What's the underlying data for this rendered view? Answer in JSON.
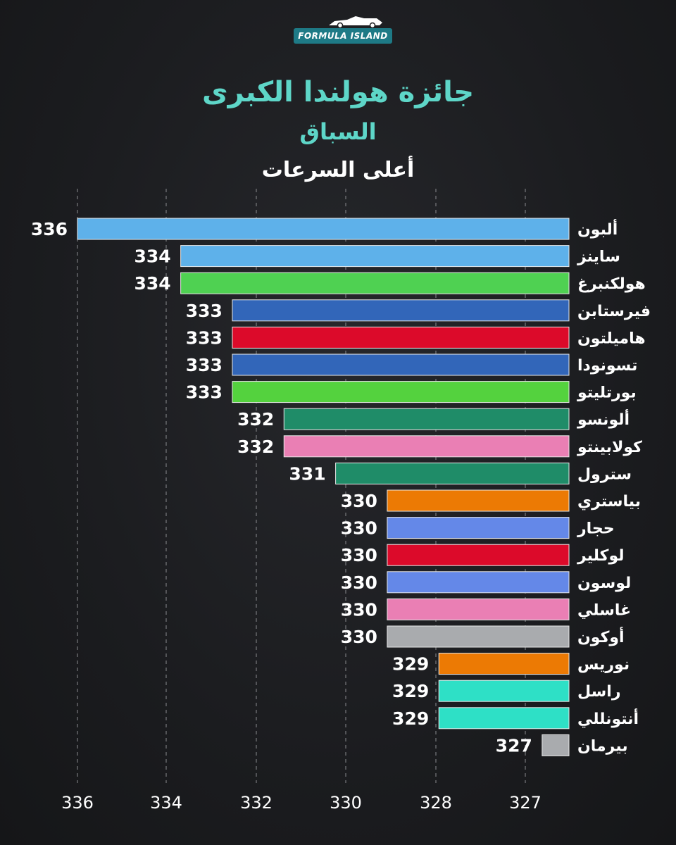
{
  "logo": {
    "text": "FORMULA ISLAND"
  },
  "header": {
    "title": "جائزة هولندا الكبرى",
    "subtitle": "السباق",
    "caption": "أعلى السرعات"
  },
  "chart_data": {
    "type": "bar",
    "orientation": "horizontal",
    "title": "جائزة هولندا الكبرى",
    "subtitle": "السباق",
    "xlabel": "",
    "ylabel": "",
    "grid": true,
    "x_ticks": [
      "336",
      "334",
      "332",
      "330",
      "328",
      "327"
    ],
    "categories": [
      "ألبون",
      "ساينز",
      "هولكنبرغ",
      "فيرستابن",
      "هاميلتون",
      "تسونودا",
      "بورتليتو",
      "ألونسو",
      "كولابينتو",
      "سترول",
      "بياستري",
      "حجار",
      "لوكلير",
      "لوسون",
      "غاسلي",
      "أوكون",
      "نوريس",
      "راسل",
      "أنتونللي",
      "بيرمان"
    ],
    "values": [
      336,
      334,
      334,
      333,
      333,
      333,
      333,
      332,
      332,
      331,
      330,
      330,
      330,
      330,
      330,
      330,
      329,
      329,
      329,
      327
    ],
    "colors": [
      "#5eb1ea",
      "#5eb1ea",
      "#4fd152",
      "#3266b9",
      "#dc0a2a",
      "#3266b9",
      "#54d23e",
      "#1f8c68",
      "#ea7fb4",
      "#1f8c68",
      "#ec7a04",
      "#6488e8",
      "#dc0a2a",
      "#6488e8",
      "#ea7fb4",
      "#a9abae",
      "#ec7a04",
      "#2ee0c6",
      "#2ee0c6",
      "#a9abae"
    ]
  }
}
